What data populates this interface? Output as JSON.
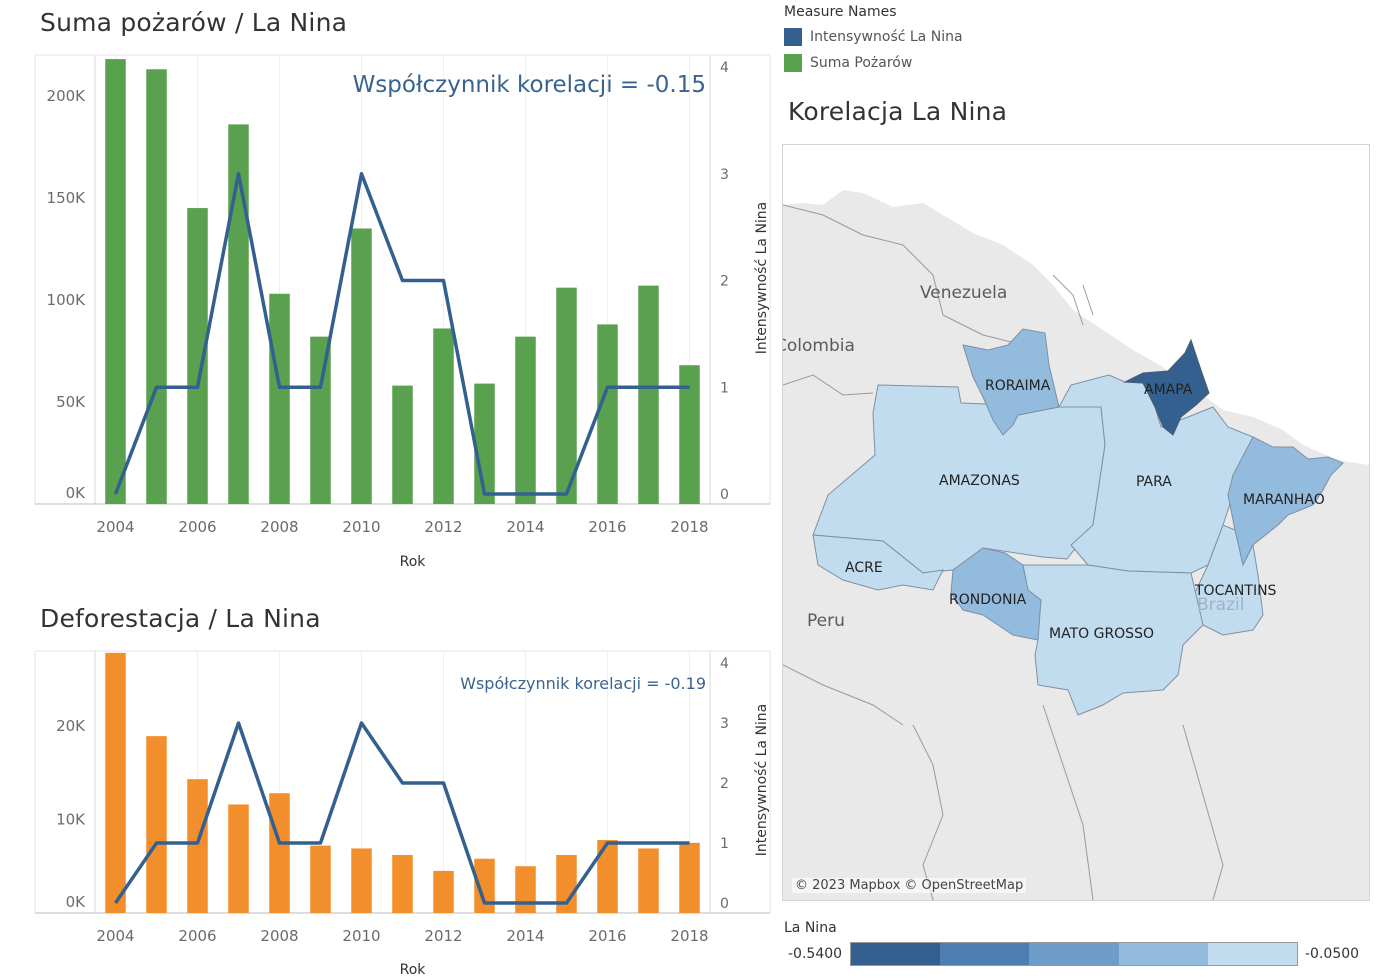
{
  "legend": {
    "title": "Measure Names",
    "items": [
      {
        "label": "Intensywność La Nina",
        "color": "#34608f"
      },
      {
        "label": "Suma Pożarów",
        "color": "#59a14f"
      }
    ]
  },
  "map": {
    "title": "Korelacja La Nina",
    "credit": "© 2023 Mapbox © OpenStreetMap",
    "countries": [
      "Venezuela",
      "Colombia",
      "Peru",
      "Brazil"
    ],
    "states": [
      {
        "name": "RORAIMA",
        "value": -0.15
      },
      {
        "name": "AMAPA",
        "value": -0.54
      },
      {
        "name": "AMAZONAS",
        "value": -0.05
      },
      {
        "name": "PARA",
        "value": -0.05
      },
      {
        "name": "MARANHAO",
        "value": -0.2
      },
      {
        "name": "ACRE",
        "value": -0.05
      },
      {
        "name": "RONDONIA",
        "value": -0.2
      },
      {
        "name": "MATO GROSSO",
        "value": -0.05
      },
      {
        "name": "TOCANTINS",
        "value": -0.05
      }
    ],
    "color_legend": {
      "title": "La Nina",
      "min_label": "-0.5400",
      "max_label": "-0.0500",
      "colors": [
        "#34608f",
        "#4c7eb0",
        "#6e9dc9",
        "#93bbdd",
        "#c2dcef"
      ]
    }
  },
  "chart_data": [
    {
      "type": "bar",
      "title": "Suma pożarów / La Nina",
      "annotation": "Współczynnik korelacji = -0.15",
      "xlabel": "Rok",
      "ylabel": "",
      "ylabel_right": "Intensywność La Nina",
      "categories": [
        2004,
        2005,
        2006,
        2007,
        2008,
        2009,
        2010,
        2011,
        2012,
        2013,
        2014,
        2015,
        2016,
        2017,
        2018
      ],
      "x_tick_labels": [
        "2004",
        "2006",
        "2008",
        "2010",
        "2012",
        "2014",
        "2016",
        "2018"
      ],
      "y_tick_labels": [
        "0K",
        "50K",
        "100K",
        "150K",
        "200K"
      ],
      "y2_tick_labels": [
        "0",
        "1",
        "2",
        "3",
        "4"
      ],
      "series": [
        {
          "name": "Suma Pożarów",
          "axis": "left",
          "color": "#59a14f",
          "values": [
            218000,
            213000,
            145000,
            186000,
            103000,
            82000,
            135000,
            58000,
            86000,
            59000,
            82000,
            106000,
            88000,
            107000,
            68000
          ]
        },
        {
          "name": "Intensywność La Nina",
          "axis": "right",
          "color": "#34608f",
          "mark": "line",
          "values": [
            0,
            1,
            1,
            3,
            1,
            1,
            3,
            2,
            2,
            0,
            0,
            0,
            1,
            1,
            1
          ]
        }
      ],
      "ylim": [
        0,
        220000
      ],
      "y2lim": [
        0,
        4
      ]
    },
    {
      "type": "bar",
      "title": "Deforestacja / La Nina",
      "annotation": "Współczynnik korelacji = -0.19",
      "xlabel": "Rok",
      "ylabel": "",
      "ylabel_right": "Intensywność La Nina",
      "categories": [
        2004,
        2005,
        2006,
        2007,
        2008,
        2009,
        2010,
        2011,
        2012,
        2013,
        2014,
        2015,
        2016,
        2017,
        2018
      ],
      "x_tick_labels": [
        "2004",
        "2006",
        "2008",
        "2010",
        "2012",
        "2014",
        "2016",
        "2018"
      ],
      "y_tick_labels": [
        "0K",
        "10K",
        "20K"
      ],
      "y2_tick_labels": [
        "0",
        "1",
        "2",
        "3",
        "4"
      ],
      "series": [
        {
          "name": "Deforestacja",
          "axis": "left",
          "color": "#f28e2b",
          "values": [
            27800,
            18900,
            14300,
            11600,
            12800,
            7200,
            6900,
            6200,
            4500,
            5800,
            5000,
            6200,
            7800,
            6900,
            7500
          ]
        },
        {
          "name": "Intensywność La Nina",
          "axis": "right",
          "color": "#34608f",
          "mark": "line",
          "values": [
            0,
            1,
            1,
            3,
            1,
            1,
            3,
            2,
            2,
            0,
            0,
            0,
            1,
            1,
            1
          ]
        }
      ],
      "ylim": [
        0,
        28000
      ],
      "y2lim": [
        0,
        4
      ]
    }
  ]
}
